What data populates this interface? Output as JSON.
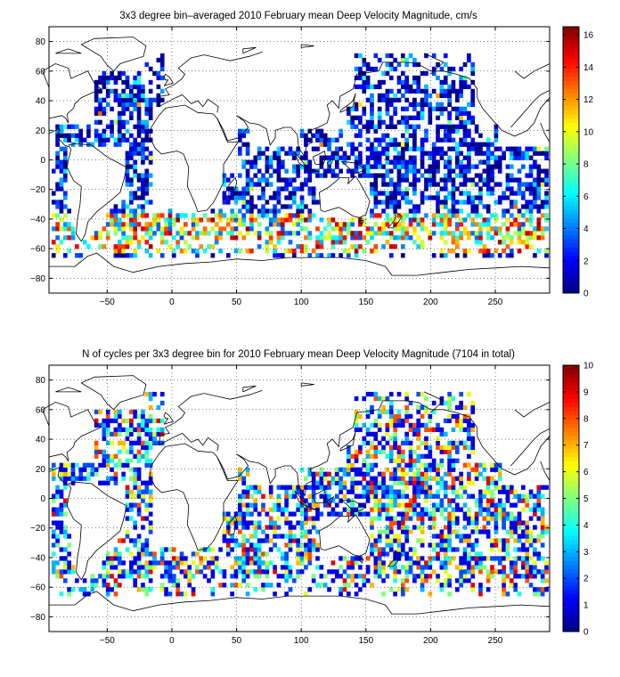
{
  "chart_data": [
    {
      "type": "heatmap",
      "title": "3x3 degree bin–averaged 2010 February mean Deep Velocity Magnitude, cm/s",
      "xlabel": "",
      "ylabel": "",
      "xlim": [
        -95,
        292
      ],
      "ylim": [
        -90,
        90
      ],
      "x_ticks": [
        -50,
        0,
        50,
        100,
        150,
        200,
        250
      ],
      "x_tick_labels": [
        "−50",
        "0",
        "50",
        "100",
        "150",
        "200",
        "250"
      ],
      "y_ticks": [
        80,
        60,
        40,
        20,
        0,
        -20,
        -40,
        -60,
        -80
      ],
      "y_tick_labels": [
        "80",
        "60",
        "40",
        "20",
        "0",
        "−20",
        "−40",
        "−60",
        "−80"
      ],
      "grid": true,
      "grid_style": "dotted",
      "bin_size_deg": 3,
      "colorbar": {
        "min": 0,
        "max": 16.5,
        "ticks": [
          0,
          2,
          4,
          6,
          8,
          10,
          12,
          14,
          16
        ],
        "tick_labels": [
          "0",
          "2",
          "4",
          "6",
          "8",
          "10",
          "12",
          "14",
          "16"
        ],
        "colormap": "jet"
      },
      "data_description_note_omitted": true
    },
    {
      "type": "heatmap",
      "title": "N of cycles per 3x3 degree bin for 2010 February mean Deep Velocity Magnitude (7104 in total)",
      "xlabel": "",
      "ylabel": "",
      "xlim": [
        -95,
        292
      ],
      "ylim": [
        -90,
        90
      ],
      "x_ticks": [
        -50,
        0,
        50,
        100,
        150,
        200,
        250
      ],
      "x_tick_labels": [
        "−50",
        "0",
        "50",
        "100",
        "150",
        "200",
        "250"
      ],
      "y_ticks": [
        80,
        60,
        40,
        20,
        0,
        -20,
        -40,
        -60,
        -80
      ],
      "y_tick_labels": [
        "80",
        "60",
        "40",
        "20",
        "0",
        "−20",
        "−40",
        "−60",
        "−80"
      ],
      "grid": true,
      "grid_style": "dotted",
      "bin_size_deg": 3,
      "total_cycles": 7104,
      "colorbar": {
        "min": 0,
        "max": 10,
        "ticks": [
          0,
          1,
          2,
          3,
          4,
          5,
          6,
          7,
          8,
          9,
          10
        ],
        "tick_labels": [
          "0",
          "1",
          "2",
          "3",
          "4",
          "5",
          "6",
          "7",
          "8",
          "9",
          "10"
        ],
        "colormap": "jet"
      }
    }
  ]
}
